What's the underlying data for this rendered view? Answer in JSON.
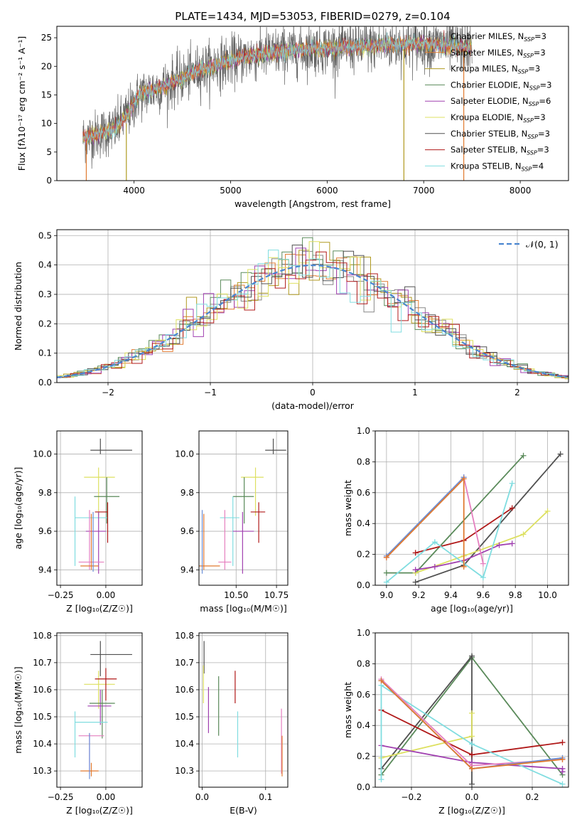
{
  "figure": {
    "title": "PLATE=1434, MJD=53053, FIBERID=0279, z=0.104",
    "colors": {
      "Chabrier MILES": "#888888",
      "Salpeter MILES": "#e07a30",
      "Kroupa MILES": "#b09a20",
      "Chabrier ELODIE": "#5a8a5a",
      "Salpeter ELODIE": "#a040b0",
      "Kroupa ELODIE": "#dde060",
      "Chabrier STELIB": "#505050",
      "Salpeter STELIB": "#b01818",
      "Kroupa STELIB": "#80dde0",
      "pink": "#e57fbf",
      "blue": "#6a8fd8",
      "normal": "#4a86d0"
    }
  },
  "chart_data": [
    {
      "id": "spectrum",
      "type": "line",
      "xlabel": "wavelength [Angstrom, rest frame]",
      "ylabel": "Flux [fλ10⁻¹⁷ erg cm⁻² s⁻¹ A⁻¹]",
      "xlim": [
        3200,
        8500
      ],
      "ylim": [
        0,
        27
      ],
      "xticks": [
        4000,
        5000,
        6000,
        7000,
        8000
      ],
      "yticks": [
        0,
        5,
        10,
        15,
        20,
        25
      ],
      "grid": false,
      "legend_position": "top-right",
      "continuum": {
        "x": [
          3470,
          3600,
          3800,
          3950,
          4050,
          4300,
          4500,
          4700,
          4900,
          5200,
          5500,
          5800,
          6100,
          6400,
          6700,
          7000,
          7300,
          7500
        ],
        "y": [
          7.5,
          8.0,
          9.0,
          12.0,
          15.0,
          16.5,
          18.0,
          19.5,
          20.5,
          21.8,
          22.5,
          23.0,
          23.2,
          23.5,
          23.8,
          24.0,
          23.5,
          23.2
        ]
      },
      "series": [
        {
          "name": "Chabrier MILES, N_SSP=3",
          "label_prefix": "Chabrier MILES, N",
          "label_sub": "SSP",
          "label_suffix": "=3",
          "color_key": "Chabrier MILES"
        },
        {
          "name": "Salpeter MILES, N_SSP=3",
          "label_prefix": "Salpeter MILES, N",
          "label_sub": "SSP",
          "label_suffix": "=3",
          "color_key": "Salpeter MILES"
        },
        {
          "name": "Kroupa MILES, N_SSP=3",
          "label_prefix": "Kroupa MILES, N",
          "label_sub": "SSP",
          "label_suffix": "=3",
          "color_key": "Kroupa MILES"
        },
        {
          "name": "Chabrier ELODIE, N_SSP=3",
          "label_prefix": "Chabrier ELODIE, N",
          "label_sub": "SSP",
          "label_suffix": "=3",
          "color_key": "Chabrier ELODIE"
        },
        {
          "name": "Salpeter ELODIE, N_SSP=6",
          "label_prefix": "Salpeter ELODIE, N",
          "label_sub": "SSP",
          "label_suffix": "=6",
          "color_key": "Salpeter ELODIE"
        },
        {
          "name": "Kroupa ELODIE, N_SSP=3",
          "label_prefix": "Kroupa ELODIE, N",
          "label_sub": "SSP",
          "label_suffix": "=3",
          "color_key": "Kroupa ELODIE"
        },
        {
          "name": "Chabrier STELIB, N_SSP=3",
          "label_prefix": "Chabrier STELIB, N",
          "label_sub": "SSP",
          "label_suffix": "=3",
          "color_key": "Chabrier STELIB"
        },
        {
          "name": "Salpeter STELIB, N_SSP=3",
          "label_prefix": "Salpeter STELIB, N",
          "label_sub": "SSP",
          "label_suffix": "=3",
          "color_key": "Salpeter STELIB"
        },
        {
          "name": "Kroupa STELIB, N_SSP=4",
          "label_prefix": "Kroupa STELIB, N",
          "label_sub": "SSP",
          "label_suffix": "=4",
          "color_key": "Kroupa STELIB"
        }
      ],
      "drop_lines": [
        {
          "x": 3505,
          "color_key": "Salpeter MILES",
          "top": 7
        },
        {
          "x": 3920,
          "color_key": "Kroupa MILES",
          "top": 10
        },
        {
          "x": 6795,
          "color_key": "Kroupa MILES",
          "top": 23
        },
        {
          "x": 7415,
          "color_key": "Salpeter MILES",
          "top": 23
        }
      ]
    },
    {
      "id": "residuals",
      "type": "histogram",
      "xlabel": "(data-model)/error",
      "ylabel": "Normed distribution",
      "xlim": [
        -2.5,
        2.5
      ],
      "ylim": [
        0,
        0.52
      ],
      "xticks": [
        -2,
        -1,
        0,
        1,
        2
      ],
      "yticks": [
        0.0,
        0.1,
        0.2,
        0.3,
        0.4,
        0.5
      ],
      "grid": true,
      "legend_position": "top-right",
      "legend_label": "𝒩(0, 1)",
      "reference_curve": "standard normal"
    },
    {
      "id": "age_vs_Z",
      "type": "errorbar",
      "xlabel": "Z [log₁₀(Z/Z☉)]",
      "ylabel": "age  [log₁₀(age/yr)]",
      "xlim": [
        -0.27,
        0.2
      ],
      "ylim": [
        9.32,
        10.12
      ],
      "xticks": [
        -0.25,
        0.0
      ],
      "yticks": [
        9.4,
        9.6,
        9.8,
        10.0
      ],
      "grid": true,
      "points": [
        {
          "x": -0.03,
          "y": 10.02,
          "xerr": [
            0.055,
            0.175
          ],
          "yerr": [
            0.02,
            0.06
          ],
          "color_key": "Chabrier STELIB"
        },
        {
          "x": -0.04,
          "y": 9.88,
          "xerr": [
            0.08,
            0.09
          ],
          "yerr": [
            0.2,
            0.05
          ],
          "color_key": "Kroupa ELODIE"
        },
        {
          "x": 0.005,
          "y": 9.78,
          "xerr": [
            0.07,
            0.07
          ],
          "yerr": [
            0.14,
            0.1
          ],
          "color_key": "Chabrier ELODIE"
        },
        {
          "x": -0.17,
          "y": 9.67,
          "xerr": [
            0.0,
            0.18
          ],
          "yerr": [
            0.25,
            0.11
          ],
          "color_key": "Kroupa STELIB"
        },
        {
          "x": 0.01,
          "y": 9.7,
          "xerr": [
            0.07,
            0.0
          ],
          "yerr": [
            0.16,
            0.05
          ],
          "color_key": "Salpeter STELIB"
        },
        {
          "x": -0.04,
          "y": 9.6,
          "xerr": [
            0.07,
            0.04
          ],
          "yerr": [
            0.22,
            0.1
          ],
          "color_key": "Salpeter ELODIE"
        },
        {
          "x": -0.09,
          "y": 9.44,
          "xerr": [
            0.06,
            0.08
          ],
          "yerr": [
            0.04,
            0.27
          ],
          "color_key": "pink"
        },
        {
          "x": -0.08,
          "y": 9.42,
          "xerr": [
            0.06,
            0.04
          ],
          "yerr": [
            0.02,
            0.27
          ],
          "color_key": "Salpeter MILES"
        },
        {
          "x": -0.07,
          "y": 9.43,
          "xerr": [
            0.0,
            0.0
          ],
          "yerr": [
            0.04,
            0.27
          ],
          "color_key": "blue"
        }
      ]
    },
    {
      "id": "age_vs_mass",
      "type": "errorbar",
      "xlabel": "mass [log₁₀(M/M☉)]",
      "ylabel": "",
      "xlim": [
        10.27,
        10.82
      ],
      "ylim": [
        9.32,
        10.12
      ],
      "xticks": [
        10.25,
        10.5,
        10.75
      ],
      "yticks": [
        9.4,
        9.6,
        9.8,
        10.0
      ],
      "grid": true,
      "points": [
        {
          "x": 10.73,
          "y": 10.02,
          "xerr": [
            0.05,
            0.08
          ],
          "yerr": [
            0.02,
            0.06
          ],
          "color_key": "Chabrier STELIB"
        },
        {
          "x": 10.62,
          "y": 9.88,
          "xerr": [
            0.09,
            0.05
          ],
          "yerr": [
            0.2,
            0.05
          ],
          "color_key": "Kroupa ELODIE"
        },
        {
          "x": 10.55,
          "y": 9.78,
          "xerr": [
            0.07,
            0.06
          ],
          "yerr": [
            0.14,
            0.1
          ],
          "color_key": "Chabrier ELODIE"
        },
        {
          "x": 10.48,
          "y": 9.67,
          "xerr": [
            0.08,
            0.04
          ],
          "yerr": [
            0.25,
            0.11
          ],
          "color_key": "Kroupa STELIB"
        },
        {
          "x": 10.64,
          "y": 9.7,
          "xerr": [
            0.05,
            0.04
          ],
          "yerr": [
            0.16,
            0.05
          ],
          "color_key": "Salpeter STELIB"
        },
        {
          "x": 10.54,
          "y": 9.6,
          "xerr": [
            0.06,
            0.07
          ],
          "yerr": [
            0.22,
            0.1
          ],
          "color_key": "Salpeter ELODIE"
        },
        {
          "x": 10.43,
          "y": 9.44,
          "xerr": [
            0.04,
            0.04
          ],
          "yerr": [
            0.04,
            0.27
          ],
          "color_key": "pink"
        },
        {
          "x": 10.3,
          "y": 9.42,
          "xerr": [
            0.03,
            0.1
          ],
          "yerr": [
            0.02,
            0.27
          ],
          "color_key": "Salpeter MILES"
        },
        {
          "x": 10.29,
          "y": 9.55,
          "xerr": [
            0.0,
            0.0
          ],
          "yerr": [
            0.17,
            0.16
          ],
          "color_key": "blue"
        }
      ]
    },
    {
      "id": "weight_vs_age",
      "type": "line",
      "xlabel": "age  [log₁₀(age/yr)]",
      "ylabel": "mass weight",
      "xlim": [
        8.93,
        10.13
      ],
      "ylim": [
        0,
        1.0
      ],
      "xticks": [
        9.0,
        9.2,
        9.4,
        9.6,
        9.8,
        10.0
      ],
      "yticks": [
        0.0,
        0.2,
        0.4,
        0.6,
        0.8,
        1.0
      ],
      "grid": true,
      "series": [
        {
          "color_key": "Chabrier ELODIE",
          "x": [
            9.0,
            9.18,
            9.85
          ],
          "y": [
            0.08,
            0.08,
            0.84
          ]
        },
        {
          "color_key": "Chabrier STELIB",
          "x": [
            9.18,
            9.48,
            10.08
          ],
          "y": [
            0.02,
            0.13,
            0.85
          ]
        },
        {
          "color_key": "Salpeter STELIB",
          "x": [
            9.18,
            9.48,
            9.78
          ],
          "y": [
            0.21,
            0.29,
            0.5
          ]
        },
        {
          "color_key": "Kroupa ELODIE",
          "x": [
            9.18,
            9.48,
            9.85,
            10.0
          ],
          "y": [
            0.08,
            0.19,
            0.33,
            0.48
          ]
        },
        {
          "color_key": "Salpeter ELODIE",
          "x": [
            9.18,
            9.3,
            9.48,
            9.7,
            9.78
          ],
          "y": [
            0.1,
            0.12,
            0.16,
            0.26,
            0.27
          ]
        },
        {
          "color_key": "Kroupa STELIB",
          "x": [
            9.0,
            9.3,
            9.6,
            9.78
          ],
          "y": [
            0.02,
            0.28,
            0.05,
            0.66
          ]
        },
        {
          "color_key": "pink",
          "x": [
            9.0,
            9.48,
            9.6
          ],
          "y": [
            0.18,
            0.7,
            0.14
          ]
        },
        {
          "color_key": "blue",
          "x": [
            9.0,
            9.48
          ],
          "y": [
            0.19,
            0.7
          ]
        },
        {
          "color_key": "Salpeter MILES",
          "x": [
            9.0,
            9.48,
            9.48
          ],
          "y": [
            0.18,
            0.69,
            0.12
          ]
        }
      ]
    },
    {
      "id": "mass_vs_Z",
      "type": "errorbar",
      "xlabel": "Z [log₁₀(Z/Z☉)]",
      "ylabel": "mass [log₁₀(M/M☉)]",
      "xlim": [
        -0.27,
        0.2
      ],
      "ylim": [
        10.24,
        10.81
      ],
      "xticks": [
        -0.25,
        0.0
      ],
      "yticks": [
        10.3,
        10.4,
        10.5,
        10.6,
        10.7,
        10.8
      ],
      "grid": true,
      "points": [
        {
          "x": -0.03,
          "y": 10.73,
          "xerr": [
            0.055,
            0.175
          ],
          "yerr": [
            0.08,
            0.05
          ],
          "color_key": "Chabrier STELIB"
        },
        {
          "x": -0.04,
          "y": 10.62,
          "xerr": [
            0.08,
            0.09
          ],
          "yerr": [
            0.09,
            0.05
          ],
          "color_key": "Kroupa ELODIE"
        },
        {
          "x": 0.0,
          "y": 10.64,
          "xerr": [
            0.06,
            0.06
          ],
          "yerr": [
            0.08,
            0.04
          ],
          "color_key": "Salpeter STELIB"
        },
        {
          "x": -0.03,
          "y": 10.54,
          "xerr": [
            0.07,
            0.06
          ],
          "yerr": [
            0.07,
            0.06
          ],
          "color_key": "Salpeter ELODIE"
        },
        {
          "x": -0.02,
          "y": 10.55,
          "xerr": [
            0.07,
            0.07
          ],
          "yerr": [
            0.13,
            0.05
          ],
          "color_key": "Chabrier ELODIE"
        },
        {
          "x": -0.17,
          "y": 10.48,
          "xerr": [
            0.0,
            0.18
          ],
          "yerr": [
            0.13,
            0.04
          ],
          "color_key": "Kroupa STELIB"
        },
        {
          "x": -0.09,
          "y": 10.43,
          "xerr": [
            0.06,
            0.08
          ],
          "yerr": [
            0.14,
            0.01
          ],
          "color_key": "pink"
        },
        {
          "x": -0.08,
          "y": 10.3,
          "xerr": [
            0.06,
            0.04
          ],
          "yerr": [
            0.02,
            0.03
          ],
          "color_key": "Salpeter MILES"
        },
        {
          "x": -0.09,
          "y": 10.29,
          "xerr": [
            0.0,
            0.0
          ],
          "yerr": [
            0.02,
            0.15
          ],
          "color_key": "blue"
        }
      ]
    },
    {
      "id": "mass_vs_ebv",
      "type": "errorbar",
      "xlabel": "E(B-V)",
      "ylabel": "",
      "xlim": [
        -0.005,
        0.135
      ],
      "ylim": [
        10.24,
        10.81
      ],
      "xticks": [
        0.0,
        0.1
      ],
      "yticks": [
        10.3,
        10.4,
        10.5,
        10.6,
        10.7,
        10.8
      ],
      "grid": true,
      "points": [
        {
          "x": 0.003,
          "y": 10.72,
          "xerr": [
            0,
            0
          ],
          "yerr": [
            0.06,
            0.06
          ],
          "color_key": "Chabrier STELIB"
        },
        {
          "x": 0.002,
          "y": 10.64,
          "xerr": [
            0,
            0
          ],
          "yerr": [
            0.09,
            0.05
          ],
          "color_key": "Kroupa ELODIE"
        },
        {
          "x": 0.01,
          "y": 10.55,
          "xerr": [
            0,
            0
          ],
          "yerr": [
            0.11,
            0.06
          ],
          "color_key": "Salpeter ELODIE"
        },
        {
          "x": 0.026,
          "y": 10.54,
          "xerr": [
            0,
            0
          ],
          "yerr": [
            0.11,
            0.11
          ],
          "color_key": "Chabrier ELODIE"
        },
        {
          "x": 0.052,
          "y": 10.63,
          "xerr": [
            0,
            0
          ],
          "yerr": [
            0.08,
            0.04
          ],
          "color_key": "Salpeter STELIB"
        },
        {
          "x": 0.056,
          "y": 10.43,
          "xerr": [
            0,
            0
          ],
          "yerr": [
            0.08,
            0.09
          ],
          "color_key": "Kroupa STELIB"
        },
        {
          "x": 0.125,
          "y": 10.43,
          "xerr": [
            0,
            0
          ],
          "yerr": [
            0.14,
            0.1
          ],
          "color_key": "pink"
        },
        {
          "x": 0.126,
          "y": 10.35,
          "xerr": [
            0,
            0
          ],
          "yerr": [
            0.07,
            0.08
          ],
          "color_key": "Salpeter MILES"
        }
      ]
    },
    {
      "id": "weight_vs_Z",
      "type": "line",
      "xlabel": "Z [log₁₀(Z/Z☉)]",
      "ylabel": "mass weight",
      "xlim": [
        -0.32,
        0.32
      ],
      "ylim": [
        0,
        1.0
      ],
      "xticks": [
        -0.2,
        0.0,
        0.2
      ],
      "yticks": [
        0.0,
        0.2,
        0.4,
        0.6,
        0.8,
        1.0
      ],
      "grid": true,
      "series": [
        {
          "color_key": "Chabrier ELODIE",
          "x": [
            -0.3,
            0.0,
            0.3
          ],
          "y": [
            0.08,
            0.84,
            0.08
          ]
        },
        {
          "color_key": "Chabrier STELIB",
          "x": [
            -0.3,
            0.0,
            0.0
          ],
          "y": [
            0.12,
            0.85,
            0.02
          ]
        },
        {
          "color_key": "Salpeter STELIB",
          "x": [
            -0.3,
            0.0,
            0.3
          ],
          "y": [
            0.5,
            0.21,
            0.29
          ]
        },
        {
          "color_key": "Kroupa ELODIE",
          "x": [
            -0.3,
            0.0,
            0.0
          ],
          "y": [
            0.19,
            0.33,
            0.48
          ]
        },
        {
          "color_key": "Salpeter ELODIE",
          "x": [
            -0.3,
            0.0,
            0.3,
            0.3
          ],
          "y": [
            0.27,
            0.16,
            0.12,
            0.1
          ]
        },
        {
          "color_key": "Kroupa STELIB",
          "x": [
            -0.3,
            -0.3,
            0.0,
            0.3
          ],
          "y": [
            0.05,
            0.66,
            0.28,
            0.02
          ]
        },
        {
          "color_key": "pink",
          "x": [
            -0.3,
            0.0,
            0.3
          ],
          "y": [
            0.7,
            0.14,
            0.18
          ]
        },
        {
          "color_key": "blue",
          "x": [
            -0.3,
            0.0,
            0.3
          ],
          "y": [
            0.69,
            0.12,
            0.19
          ]
        },
        {
          "color_key": "Salpeter MILES",
          "x": [
            -0.3,
            0.0,
            0.3
          ],
          "y": [
            0.69,
            0.12,
            0.18
          ]
        }
      ]
    }
  ]
}
